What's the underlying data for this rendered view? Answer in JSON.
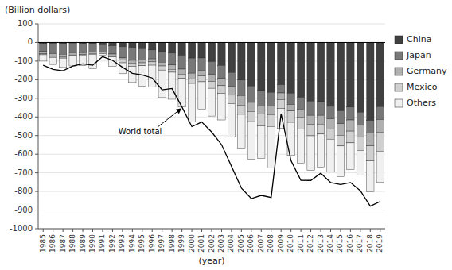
{
  "chart_data": {
    "type": "bar",
    "stacked": true,
    "grid": true,
    "legend": "right",
    "y_label": "(Billion dollars)",
    "x_label": "(year)",
    "categories": [
      "1985",
      "1986",
      "1987",
      "1988",
      "1989",
      "1990",
      "1991",
      "1992",
      "1993",
      "1994",
      "1995",
      "1996",
      "1997",
      "1998",
      "1999",
      "2000",
      "2001",
      "2002",
      "2003",
      "2004",
      "2005",
      "2006",
      "2007",
      "2008",
      "2009",
      "2010",
      "2011",
      "2012",
      "2013",
      "2014",
      "2015",
      "2016",
      "2017",
      "2018",
      "2019"
    ],
    "series": [
      {
        "name": "China",
        "type": "bar",
        "color": "#404040",
        "values": [
          -6,
          -5,
          -6,
          -3,
          -6,
          -10,
          -13,
          -18,
          -23,
          -30,
          -34,
          -40,
          -50,
          -57,
          -69,
          -84,
          -83,
          -103,
          -124,
          -162,
          -202,
          -234,
          -258,
          -268,
          -227,
          -273,
          -295,
          -315,
          -318,
          -343,
          -367,
          -347,
          -375,
          -419,
          -345
        ]
      },
      {
        "name": "Japan",
        "type": "bar",
        "color": "#787878",
        "values": [
          -43,
          -55,
          -57,
          -52,
          -49,
          -41,
          -38,
          -44,
          -60,
          -66,
          -59,
          -48,
          -56,
          -64,
          -74,
          -81,
          -69,
          -70,
          -70,
          -75,
          -83,
          -88,
          -82,
          -74,
          -44,
          -60,
          -63,
          -76,
          -73,
          -67,
          -69,
          -69,
          -69,
          -68,
          -69
        ]
      },
      {
        "name": "Germany",
        "type": "bar",
        "color": "#b0b0b0",
        "values": [
          -12,
          -15,
          -16,
          -12,
          -10,
          -11,
          -9,
          -10,
          -11,
          -14,
          -16,
          -16,
          -20,
          -23,
          -27,
          -30,
          -28,
          -36,
          -38,
          -46,
          -51,
          -48,
          -45,
          -45,
          -36,
          -35,
          -42,
          -48,
          -47,
          -55,
          -62,
          -60,
          -64,
          -68,
          -67
        ]
      },
      {
        "name": "Mexico",
        "type": "bar",
        "color": "#d0d0d0",
        "values": [
          -5,
          -5,
          -5,
          -2,
          -2,
          -1,
          1,
          -6,
          -15,
          -18,
          -16,
          -18,
          -22,
          -16,
          -23,
          -25,
          -31,
          -37,
          -41,
          -45,
          -50,
          -55,
          -63,
          -64,
          -47,
          -61,
          -65,
          -62,
          -54,
          -54,
          -58,
          -63,
          -71,
          -81,
          -102
        ]
      },
      {
        "name": "Others",
        "type": "bar",
        "color": "#f0f0f0",
        "values": [
          -34,
          -38,
          -50,
          -57,
          -57,
          -78,
          -9,
          -50,
          -59,
          -87,
          -110,
          -117,
          -148,
          -145,
          -154,
          -207,
          -146,
          -149,
          -143,
          -180,
          -186,
          -203,
          -175,
          -222,
          -108,
          -178,
          -182,
          -186,
          -177,
          -177,
          -165,
          -144,
          -134,
          -165,
          -169
        ]
      },
      {
        "type": "line",
        "color": "black",
        "values": [
          -122,
          -145,
          -152,
          -127,
          -115,
          -122,
          -76,
          -96,
          -133,
          -166,
          -174,
          -191,
          -254,
          -247,
          -346,
          -452,
          -427,
          -481,
          -549,
          -665,
          -782,
          -838,
          -821,
          -832,
          -382,
          -635,
          -740,
          -741,
          -702,
          -752,
          -763,
          -752,
          -796,
          -879,
          -854
        ]
      }
    ],
    "annotations": [
      {
        "text": "World total",
        "x": "1999",
        "y": -346
      }
    ],
    "ylim": [
      -1000,
      100
    ],
    "yticks": [
      100,
      0,
      -100,
      -200,
      -300,
      -400,
      -500,
      -600,
      -700,
      -800,
      -900,
      -1000
    ]
  }
}
